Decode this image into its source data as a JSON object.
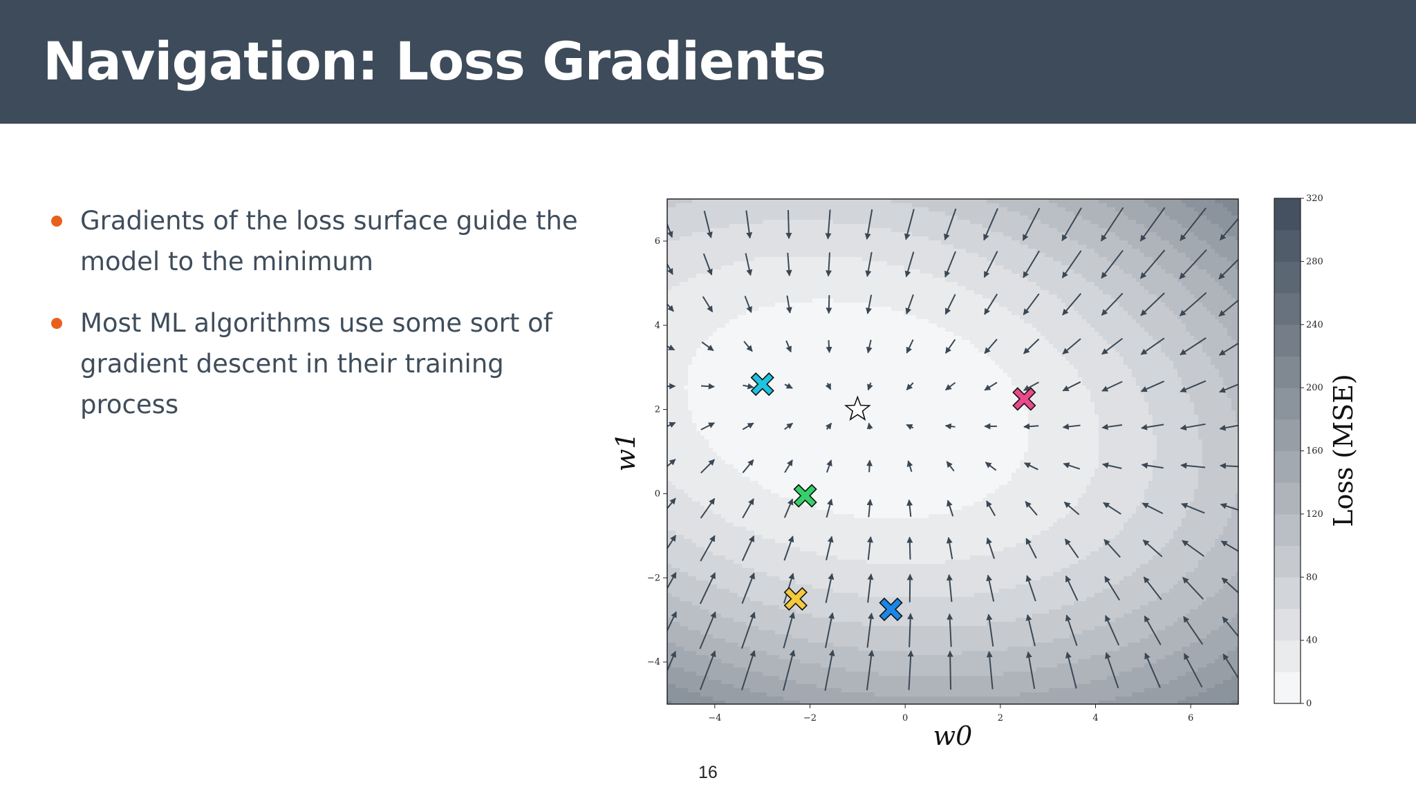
{
  "slide": {
    "title": "Navigation: Loss Gradients",
    "bullets": [
      "Gradients of the loss surface guide the model to the minimum",
      "Most ML algorithms use some sort of gradient descent in their training process"
    ],
    "page_number": "16"
  },
  "colors": {
    "header_bg": "#3d4b5a",
    "title_text": "#ffffff",
    "bullet_text": "#3f4d5b",
    "bullet_dot": "#e8611c",
    "colormap_low": "#fbfbfc",
    "colormap_high": "#3f4c5b",
    "arrow": "#3a4754"
  },
  "chart_data": {
    "type": "heatmap",
    "subtype": "filled contour with gradient quiver",
    "title": "",
    "xlabel": "w0",
    "ylabel": "w1",
    "colorbar_label": "Loss (MSE)",
    "xlim": [
      -5,
      7
    ],
    "ylim": [
      -5,
      7
    ],
    "xticks": [
      -4,
      -2,
      0,
      2,
      4,
      6
    ],
    "yticks": [
      -4,
      -2,
      0,
      2,
      4,
      6
    ],
    "colorbar_ticks": [
      0,
      40,
      80,
      120,
      160,
      200,
      240,
      280,
      320
    ],
    "colorbar_range": [
      0,
      320
    ],
    "loss_minimum": {
      "w0": -1,
      "w1": 2,
      "marker": "star"
    },
    "markers": [
      {
        "w0": -3.0,
        "w1": 2.6,
        "color": "#1ec3e0"
      },
      {
        "w0": 2.5,
        "w1": 2.25,
        "color": "#ea4a8a"
      },
      {
        "w0": -2.1,
        "w1": -0.05,
        "color": "#35d06a"
      },
      {
        "w0": -2.3,
        "w1": -2.5,
        "color": "#f4c93a"
      },
      {
        "w0": -0.3,
        "w1": -2.75,
        "color": "#1a86e8"
      }
    ],
    "quiver_x": [
      -5,
      -4.15,
      -3.3,
      -2.45,
      -1.6,
      -0.75,
      0.1,
      0.95,
      1.8,
      2.65,
      3.5,
      4.35,
      5.2,
      6.05,
      6.9
    ],
    "quiver_y": [
      6.4,
      5.45,
      4.5,
      3.5,
      2.55,
      1.6,
      0.65,
      -0.35,
      -1.3,
      -2.25,
      -3.25,
      -4.2
    ]
  }
}
